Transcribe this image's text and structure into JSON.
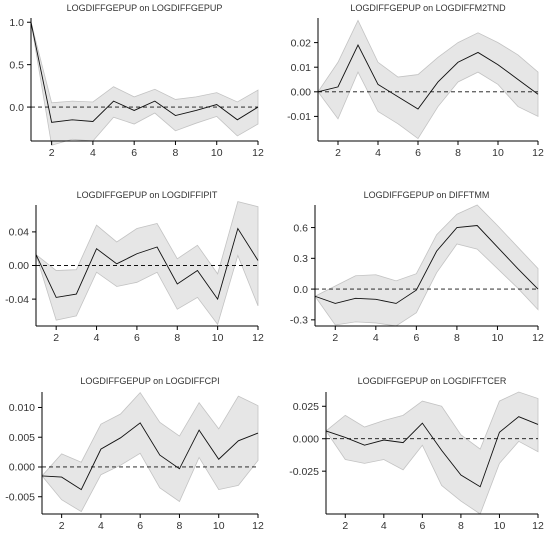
{
  "chart_data": [
    {
      "type": "line",
      "title": "LOGDIFFGEPUP on LOGDIFFGEPUP",
      "x": [
        1,
        2,
        3,
        4,
        5,
        6,
        7,
        8,
        9,
        10,
        11,
        12
      ],
      "series": [
        {
          "role": "response",
          "values": [
            1.0,
            -0.18,
            -0.15,
            -0.17,
            0.07,
            -0.04,
            0.07,
            -0.1,
            -0.04,
            0.03,
            -0.15,
            0.0
          ]
        },
        {
          "role": "upper",
          "values": [
            1.0,
            0.05,
            0.07,
            0.06,
            0.24,
            0.12,
            0.21,
            0.09,
            0.12,
            0.17,
            0.06,
            0.2
          ]
        },
        {
          "role": "lower",
          "values": [
            1.0,
            -0.45,
            -0.38,
            -0.4,
            -0.12,
            -0.2,
            -0.07,
            -0.28,
            -0.19,
            -0.11,
            -0.34,
            -0.2
          ]
        }
      ],
      "xlim": [
        1,
        12
      ],
      "ylim": [
        -0.4,
        1.05
      ],
      "xticks": [
        2,
        4,
        6,
        8,
        10,
        12
      ],
      "yticks": [
        -0.4,
        -0.3,
        -0.2,
        -0.1,
        0,
        0.1,
        0.2,
        0.3,
        0.4
      ],
      "ytick_labels": [
        "0.0",
        "0.5",
        "1.0"
      ],
      "grid": false
    },
    {
      "type": "line",
      "title": "LOGDIFFGEPUP on LOGDIFFM2TND",
      "x": [
        1,
        2,
        3,
        4,
        5,
        6,
        7,
        8,
        9,
        10,
        11,
        12
      ],
      "series": [
        {
          "role": "response",
          "values": [
            0.0,
            0.002,
            0.019,
            0.003,
            -0.002,
            -0.007,
            0.004,
            0.012,
            0.016,
            0.011,
            0.005,
            -0.001
          ]
        },
        {
          "role": "upper",
          "values": [
            0.0,
            0.012,
            0.029,
            0.012,
            0.006,
            0.007,
            0.014,
            0.02,
            0.024,
            0.02,
            0.015,
            0.008
          ]
        },
        {
          "role": "lower",
          "values": [
            0.0,
            -0.011,
            0.008,
            -0.008,
            -0.013,
            -0.019,
            -0.006,
            0.004,
            0.008,
            0.003,
            -0.006,
            -0.01
          ]
        }
      ],
      "xlim": [
        1,
        12
      ],
      "ylim": [
        -0.02,
        0.03
      ],
      "xticks": [
        2,
        4,
        6,
        8,
        10,
        12
      ],
      "ytick_labels": [
        "-0.01",
        "0.00",
        "0.01",
        "0.02"
      ],
      "grid": false
    },
    {
      "type": "line",
      "title": "LOGDIFFGEPUP on LOGDIFFIPIT",
      "x": [
        1,
        2,
        3,
        4,
        5,
        6,
        7,
        8,
        9,
        10,
        11,
        12
      ],
      "series": [
        {
          "role": "response",
          "values": [
            0.013,
            -0.038,
            -0.034,
            0.02,
            0.002,
            0.014,
            0.022,
            -0.022,
            -0.006,
            -0.04,
            0.044,
            0.006
          ]
        },
        {
          "role": "upper",
          "values": [
            0.013,
            -0.006,
            -0.005,
            0.048,
            0.028,
            0.044,
            0.05,
            0.008,
            0.024,
            -0.01,
            0.076,
            0.07
          ]
        },
        {
          "role": "lower",
          "values": [
            0.013,
            -0.065,
            -0.06,
            -0.008,
            -0.025,
            -0.02,
            -0.008,
            -0.052,
            -0.038,
            -0.07,
            0.012,
            -0.048
          ]
        }
      ],
      "xlim": [
        1,
        12
      ],
      "ylim": [
        -0.072,
        0.072
      ],
      "xticks": [
        2,
        4,
        6,
        8,
        10,
        12
      ],
      "ytick_labels": [
        "-0.04",
        "0.00",
        "0.04"
      ],
      "grid": false
    },
    {
      "type": "line",
      "title": "LOGDIFFGEPUP on DIFFTMM",
      "x": [
        1,
        2,
        3,
        4,
        5,
        6,
        7,
        8,
        9,
        10,
        11,
        12
      ],
      "series": [
        {
          "role": "response",
          "values": [
            -0.07,
            -0.14,
            -0.09,
            -0.1,
            -0.14,
            -0.01,
            0.37,
            0.6,
            0.62,
            0.41,
            0.2,
            0.0
          ]
        },
        {
          "role": "upper",
          "values": [
            -0.07,
            0.03,
            0.13,
            0.14,
            0.08,
            0.15,
            0.53,
            0.73,
            0.82,
            0.62,
            0.41,
            0.2
          ]
        },
        {
          "role": "lower",
          "values": [
            -0.07,
            -0.35,
            -0.32,
            -0.33,
            -0.36,
            -0.23,
            0.16,
            0.44,
            0.39,
            0.2,
            0.01,
            -0.2
          ]
        }
      ],
      "xlim": [
        1,
        12
      ],
      "ylim": [
        -0.36,
        0.82
      ],
      "xticks": [
        2,
        4,
        6,
        8,
        10,
        12
      ],
      "ytick_labels": [
        "-0.3",
        "0.0",
        "0.3",
        "0.6"
      ],
      "grid": false
    },
    {
      "type": "line",
      "title": "LOGDIFFGEPUP on LOGDIFFCPI",
      "x": [
        1,
        2,
        3,
        4,
        5,
        6,
        7,
        8,
        9,
        10,
        11,
        12
      ],
      "series": [
        {
          "role": "response",
          "values": [
            -0.0015,
            -0.0017,
            -0.0038,
            0.003,
            0.0049,
            0.0074,
            0.002,
            -0.0003,
            0.0062,
            0.0013,
            0.0044,
            0.0057
          ]
        },
        {
          "role": "upper",
          "values": [
            -0.0015,
            0.0022,
            0.0008,
            0.0072,
            0.0089,
            0.0125,
            0.0075,
            0.0052,
            0.0108,
            0.0064,
            0.0119,
            0.0103
          ]
        },
        {
          "role": "lower",
          "values": [
            -0.0015,
            -0.0055,
            -0.0075,
            -0.0013,
            0.0003,
            0.0023,
            -0.0035,
            -0.0058,
            0.0016,
            -0.0038,
            -0.0031,
            0.0011
          ]
        }
      ],
      "xlim": [
        1,
        12
      ],
      "ylim": [
        -0.0079,
        0.0126
      ],
      "xticks": [
        2,
        4,
        6,
        8,
        10,
        12
      ],
      "ytick_labels": [
        "-0.005",
        "0.000",
        "0.005",
        "0.010"
      ],
      "grid": false
    },
    {
      "type": "line",
      "title": "LOGDIFFGEPUP on LOGDIFFTCER",
      "x": [
        1,
        2,
        3,
        4,
        5,
        6,
        7,
        8,
        9,
        10,
        11,
        12
      ],
      "series": [
        {
          "role": "response",
          "values": [
            0.006,
            0.001,
            -0.005,
            -0.001,
            -0.003,
            0.012,
            -0.009,
            -0.028,
            -0.037,
            0.005,
            0.017,
            0.011
          ]
        },
        {
          "role": "upper",
          "values": [
            0.006,
            0.018,
            0.009,
            0.014,
            0.018,
            0.029,
            0.025,
            0.003,
            -0.008,
            0.029,
            0.036,
            0.031
          ]
        },
        {
          "role": "lower",
          "values": [
            0.006,
            -0.016,
            -0.019,
            -0.016,
            -0.024,
            -0.005,
            -0.036,
            -0.048,
            -0.058,
            -0.019,
            -0.002,
            -0.01
          ]
        }
      ],
      "xlim": [
        1,
        12
      ],
      "ylim": [
        -0.058,
        0.036
      ],
      "xticks": [
        2,
        4,
        6,
        8,
        10,
        12
      ],
      "ytick_labels": [
        "-0.025",
        "0.000",
        "0.025"
      ],
      "grid": false
    }
  ]
}
